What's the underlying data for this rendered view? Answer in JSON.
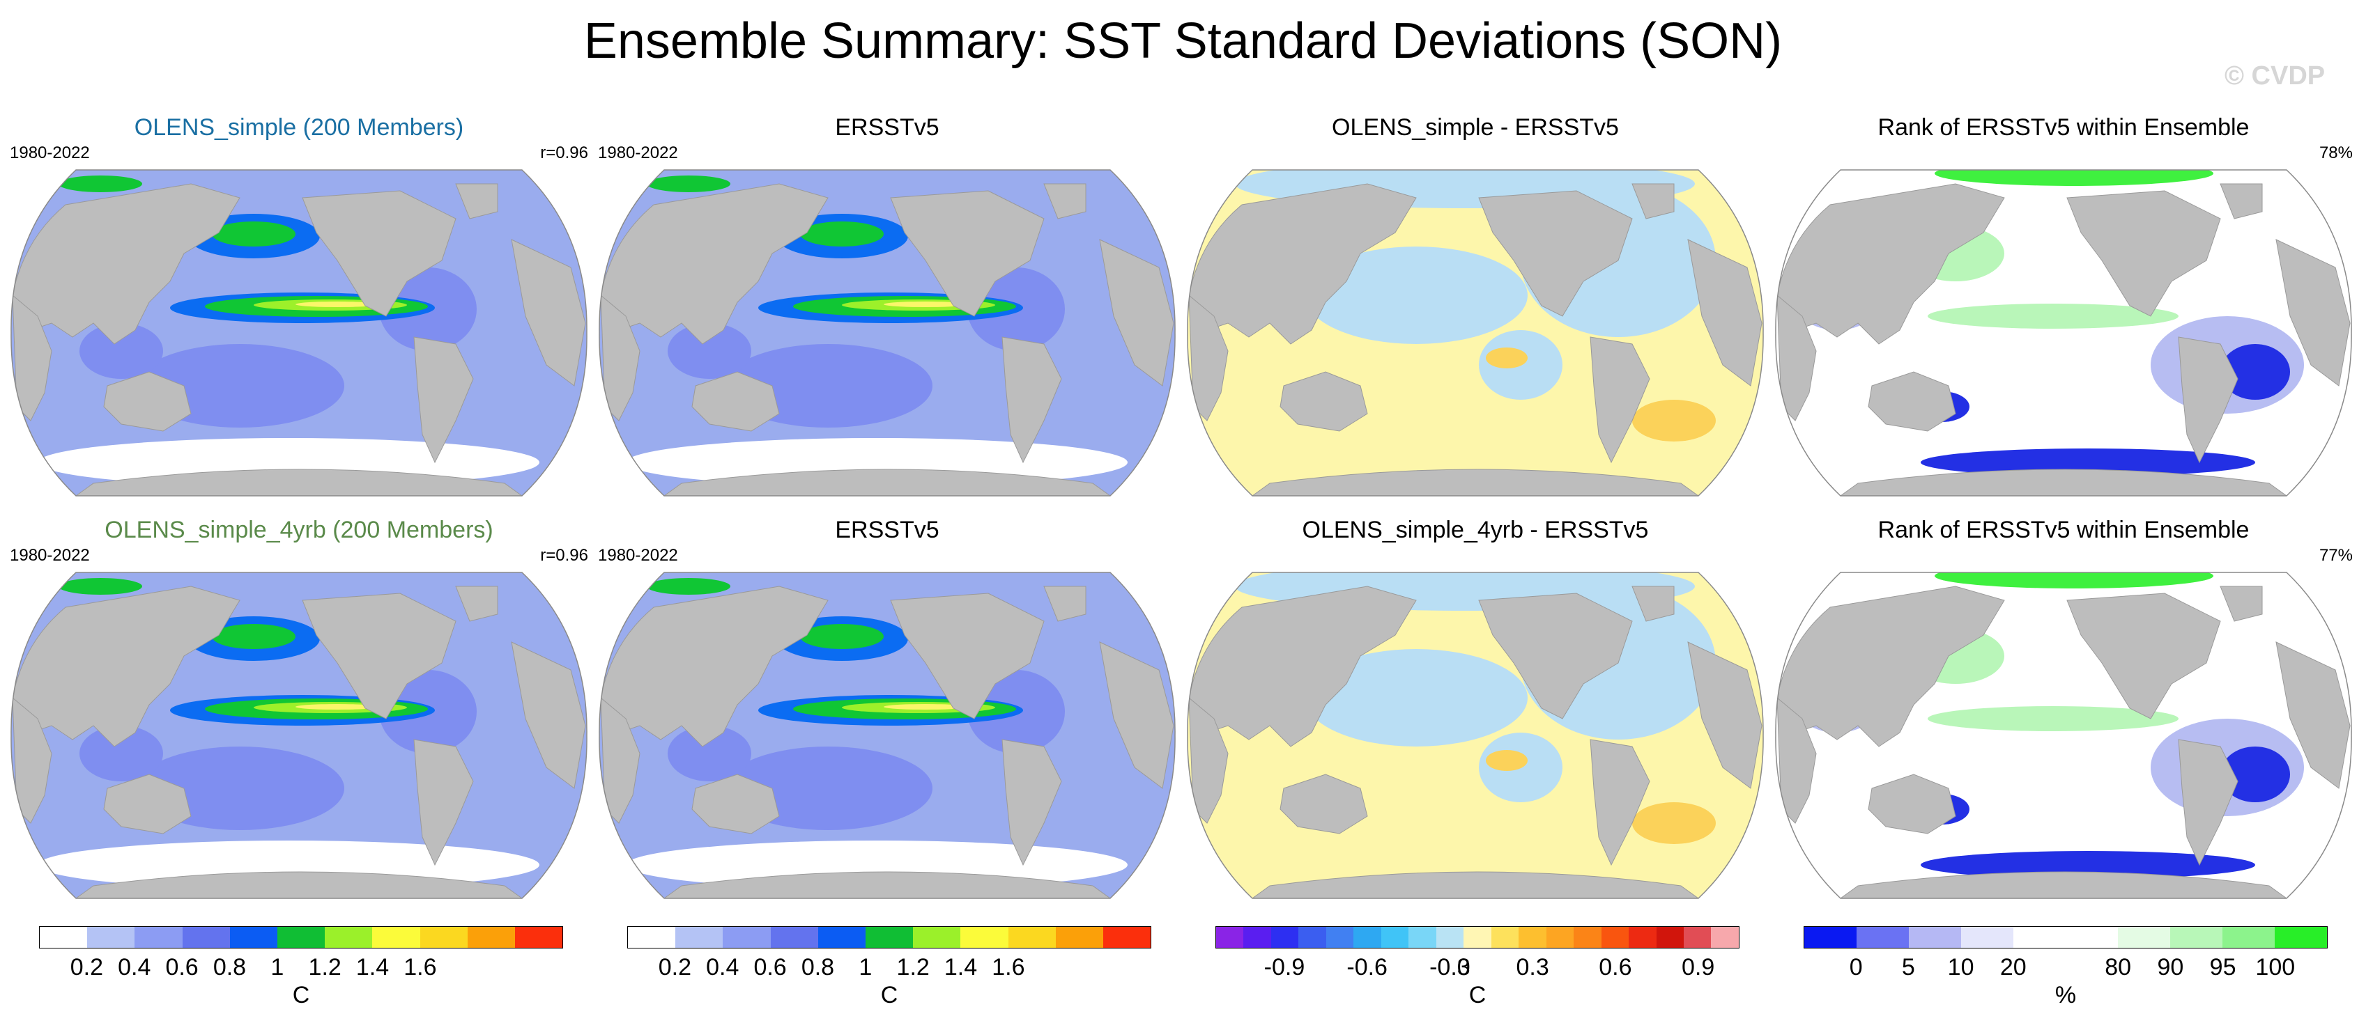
{
  "title": "Ensemble Summary: SST Standard Deviations (SON)",
  "watermark": "© CVDP",
  "colors": {
    "land": "#bdbdbd",
    "sd_ocean": "#9aacee",
    "sd_ocean_dark": "#7f8ef0",
    "sd_high": "#0b6cf2",
    "sd_green": "#10c634",
    "sd_lime": "#9df02a",
    "sd_yellow": "#fbf66a",
    "diff_blue": "#b9def4",
    "diff_yellow": "#fdf6ab",
    "diff_orange": "#fbd25a",
    "rank_blue": "#2330e4",
    "rank_lightblue": "#b7bdf2",
    "rank_green": "#3ff03f",
    "rank_lightgreen": "#b9f6b9"
  },
  "rows": [
    {
      "panels": [
        {
          "title": "OLENS_simple (200 Members)",
          "title_color": "#1a6fa3",
          "period": "1980-2022",
          "stat": "r=0.96",
          "kind": "sd"
        },
        {
          "title": "ERSSTv5",
          "title_color": "#000000",
          "period": "1980-2022",
          "stat": "",
          "kind": "sd"
        },
        {
          "title": "OLENS_simple - ERSSTv5",
          "title_color": "#000000",
          "period": "",
          "stat": "",
          "kind": "diff"
        },
        {
          "title": "Rank of ERSSTv5 within Ensemble",
          "title_color": "#000000",
          "period": "",
          "stat": "78%",
          "kind": "rank"
        }
      ]
    },
    {
      "panels": [
        {
          "title": "OLENS_simple_4yrb (200 Members)",
          "title_color": "#5a8a4a",
          "period": "1980-2022",
          "stat": "r=0.96",
          "kind": "sd"
        },
        {
          "title": "ERSSTv5",
          "title_color": "#000000",
          "period": "1980-2022",
          "stat": "",
          "kind": "sd"
        },
        {
          "title": "OLENS_simple_4yrb - ERSSTv5",
          "title_color": "#000000",
          "period": "",
          "stat": "",
          "kind": "diff"
        },
        {
          "title": "Rank of ERSSTv5 within Ensemble",
          "title_color": "#000000",
          "period": "",
          "stat": "77%",
          "kind": "rank"
        }
      ]
    }
  ],
  "colorbars": [
    {
      "unit": "C",
      "colors": [
        "#ffffff",
        "#b4c3f5",
        "#8c9cf3",
        "#6373ee",
        "#0b5cf3",
        "#10be34",
        "#9bf02a",
        "#fbfb3a",
        "#fbd820",
        "#fba009",
        "#fb2f0c"
      ],
      "ticks": [
        "0.2",
        "0.4",
        "0.6",
        "0.8",
        "1",
        "1.2",
        "1.4",
        "1.6"
      ]
    },
    {
      "unit": "C",
      "colors": [
        "#ffffff",
        "#b4c3f5",
        "#8c9cf3",
        "#6373ee",
        "#0b5cf3",
        "#10be34",
        "#9bf02a",
        "#fbfb3a",
        "#fbd820",
        "#fba009",
        "#fb2f0c"
      ],
      "ticks": [
        "0.2",
        "0.4",
        "0.6",
        "0.8",
        "1",
        "1.2",
        "1.4",
        "1.6"
      ]
    },
    {
      "unit": "C",
      "colors": [
        "#8a24e6",
        "#5a1ef0",
        "#2d2ff2",
        "#3b5ef0",
        "#4180f2",
        "#2ea8f2",
        "#40c4f7",
        "#79d6f7",
        "#b9e3f4",
        "#fff6b4",
        "#fde15c",
        "#fdbf2f",
        "#fda522",
        "#fb8417",
        "#f9550f",
        "#ed2a12",
        "#d1150c",
        "#e14d55",
        "#f7a8ac"
      ],
      "ticks": [
        "-0.9",
        "-0.6",
        "-0.3",
        "0",
        "0.3",
        "0.6",
        "0.9"
      ]
    },
    {
      "unit": "%",
      "colors": [
        "#0a19f2",
        "#6a72f3",
        "#b5b8f4",
        "#e4e6fb",
        "#ffffff",
        "#ffffff",
        "#e4fbe4",
        "#b8f7b8",
        "#8cf38c",
        "#28ee28"
      ],
      "ticks": [
        "0",
        "5",
        "10",
        "20",
        "80",
        "90",
        "95",
        "100"
      ]
    }
  ]
}
